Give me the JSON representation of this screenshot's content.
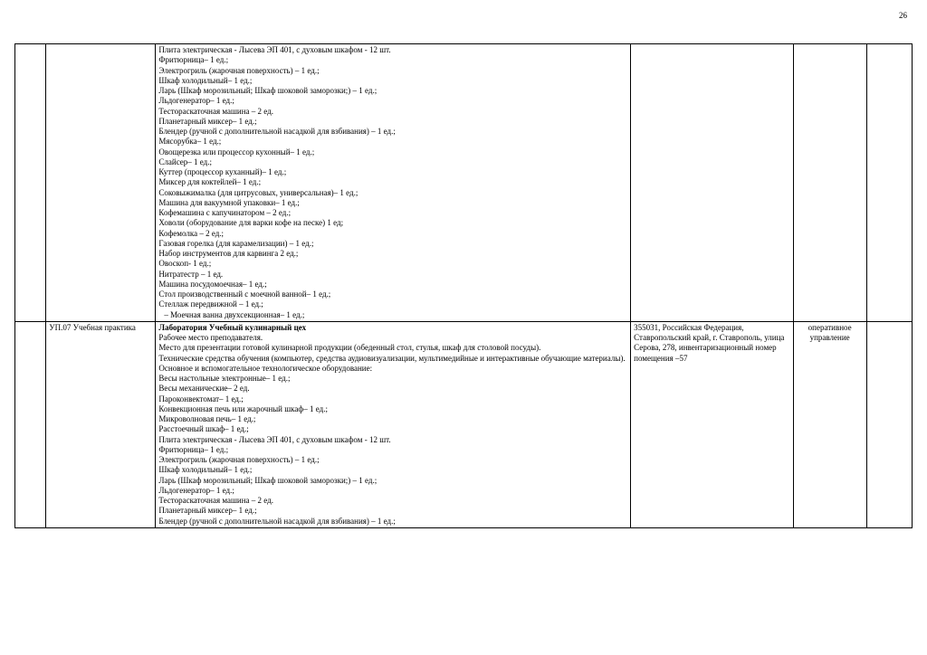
{
  "page_number": "26",
  "rows": [
    {
      "col_a": "",
      "col_b": "",
      "col_c_lines": [
        "Плита электрическая - Лысева ЭП 401, с духовым шкафом  - 12 шт.",
        "Фритюрница– 1 ед.;",
        "Электрогриль (жарочная поверхность) – 1 ед.;",
        "Шкаф холодильный– 1 ед.;",
        "Ларь (Шкаф морозильный; Шкаф шоковой заморозки;) – 1 ед.;",
        "Льдогенератор– 1 ед.;",
        "Тестораскаточная машина – 2 ед.",
        "Планетарный миксер– 1 ед.;",
        "Блендер (ручной с дополнительной насадкой для взбивания) – 1 ед.;",
        "Мясорубка– 1 ед.;",
        "Овощерезка или процессор кухонный– 1 ед.;",
        "Слайсер– 1 ед.;",
        "Куттер (процессор куханный)– 1 ед.;",
        "Миксер для коктейлей– 1 ед.;",
        "Соковыжималка (для цитрусовых, универсальная)– 1 ед.;",
        "Машина для вакуумной упаковки– 1 ед.;",
        "Кофемашина с капучинатором – 2 ед.;",
        "Ховоли (оборудование для варки кофе на песке) 1 ед;",
        "Кофемолка – 2 ед.;",
        "Газовая горелка (для карамелизации) – 1 ед.;",
        "Набор инструментов для карвинга 2 ед.;",
        "Овоскоп- 1 ед.;",
        "Нитратестр – 1 ед.",
        "Машина посудомоечная– 1 ед.;",
        "Стол производственный с моечной ванной– 1 ед.;",
        "Стеллаж передвижной – 1 ед.;"
      ],
      "col_c_last_dash": "–   Моечная ванна двухсекционная– 1 ед.;",
      "col_d": "",
      "col_e": "",
      "col_f": ""
    },
    {
      "col_a": "",
      "col_b": "УП.07 Учебная практика",
      "col_c_bold_first": "Лаборатория Учебный кулинарный цех",
      "col_c_lines": [
        "Рабочее место преподавателя.",
        "Место для презентации готовой кулинарной продукции (обеденный стол, стулья, шкаф для столовой посуды).",
        "Технические средства обучения (компьютер, средства аудиовизуализации, мультимедийные и интерактивные обучающие материалы).",
        "Основное и вспомогательное технологическое оборудование:",
        "Весы настольные электронные– 1 ед.;",
        "Весы механические– 2 ед.",
        "Пароконвектомат– 1 ед.;",
        "Конвекционная печь или жарочный шкаф– 1 ед.;",
        "Микроволновая печь– 1 ед.;",
        "Расстоечный шкаф– 1 ед.;",
        "Плита электрическая - Лысева ЭП 401, с духовым шкафом  - 12 шт.",
        "Фритюрница– 1 ед.;",
        "Электрогриль (жарочная поверхность) – 1 ед.;",
        "Шкаф холодильный– 1 ед.;",
        "Ларь (Шкаф морозильный; Шкаф шоковой заморозки;) – 1 ед.;",
        "Льдогенератор– 1 ед.;",
        "Тестораскаточная машина – 2 ед.",
        "Планетарный миксер– 1 ед.;",
        "Блендер (ручной с дополнительной насадкой для взбивания) – 1 ед.;"
      ],
      "col_d": "355031, Российская Федерация, Ставропольский край, г. Ставрополь, улица Серова, 278, инвентаризационный номер помещения –57",
      "col_e": "оперативное управление",
      "col_f": ""
    }
  ]
}
